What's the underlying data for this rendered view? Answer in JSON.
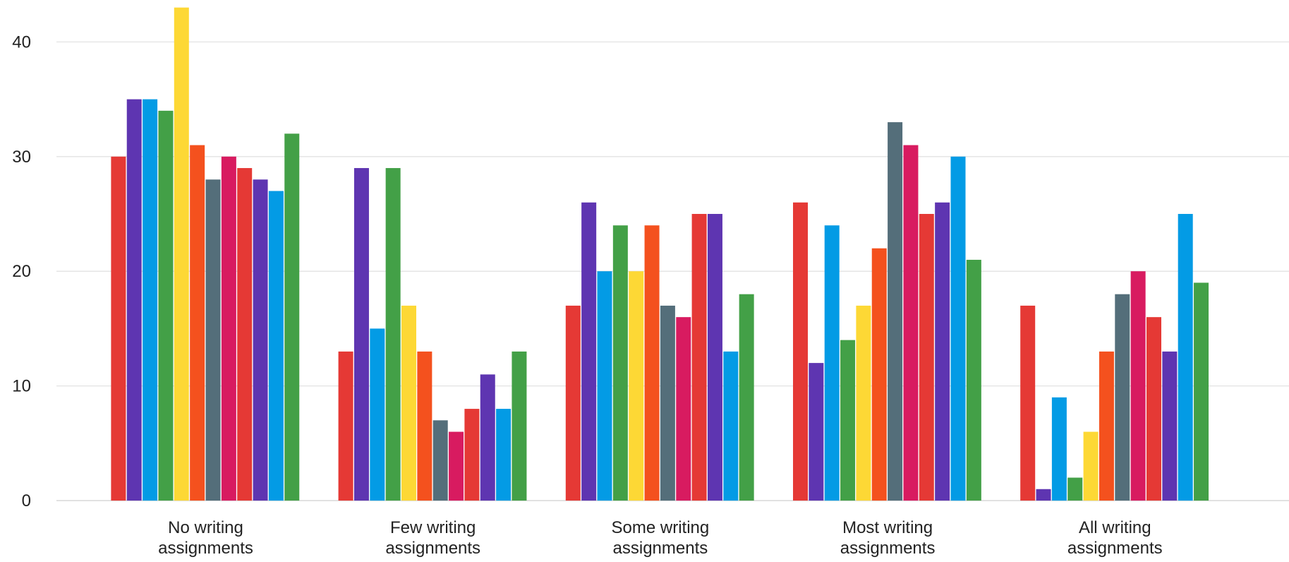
{
  "chart_data": {
    "type": "bar",
    "categories": [
      [
        "No writing",
        "assignments"
      ],
      [
        "Few writing",
        "assignments"
      ],
      [
        "Some writing",
        "assignments"
      ],
      [
        "Most writing",
        "assignments"
      ],
      [
        "All writing",
        "assignments"
      ]
    ],
    "series_colors": [
      "#e53935",
      "#5e35b1",
      "#039be5",
      "#43a047",
      "#fdd835",
      "#f4511e",
      "#546e7a",
      "#d81b60",
      "#e53935",
      "#5e35b1",
      "#039be5",
      "#43a047"
    ],
    "series": [
      {
        "values": [
          30,
          13,
          17,
          26,
          17
        ]
      },
      {
        "values": [
          35,
          29,
          26,
          12,
          1
        ]
      },
      {
        "values": [
          35,
          15,
          20,
          24,
          9
        ]
      },
      {
        "values": [
          34,
          29,
          24,
          14,
          2
        ]
      },
      {
        "values": [
          43,
          17,
          20,
          17,
          6
        ]
      },
      {
        "values": [
          31,
          13,
          24,
          22,
          13
        ]
      },
      {
        "values": [
          28,
          7,
          17,
          33,
          18
        ]
      },
      {
        "values": [
          30,
          6,
          16,
          31,
          20
        ]
      },
      {
        "values": [
          29,
          8,
          25,
          25,
          16
        ]
      },
      {
        "values": [
          28,
          11,
          25,
          26,
          13
        ]
      },
      {
        "values": [
          27,
          8,
          13,
          30,
          25
        ]
      },
      {
        "values": [
          32,
          13,
          18,
          21,
          19
        ]
      }
    ],
    "yticks": [
      "0",
      "10",
      "20",
      "30",
      "40"
    ],
    "ylim": [
      0,
      43
    ],
    "grid": true,
    "title": "",
    "xlabel": "",
    "ylabel": ""
  }
}
